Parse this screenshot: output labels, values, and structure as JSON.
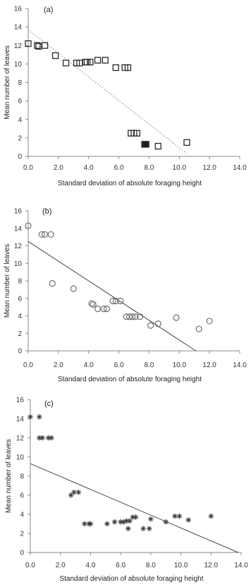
{
  "chart_data": [
    {
      "type": "scatter",
      "panel_label": "(a)",
      "marker": "square",
      "xlabel": "Standard deviation of absolute foraging height",
      "ylabel": "Mean number of leaves",
      "xlim": [
        0,
        14
      ],
      "ylim": [
        0,
        16
      ],
      "xticks": [
        "0.0",
        "2.0",
        "4.0",
        "6.0",
        "8.0",
        "10.0",
        "12.0",
        "14.0"
      ],
      "yticks": [
        "0",
        "2",
        "4",
        "6",
        "8",
        "10",
        "12",
        "14",
        "16"
      ],
      "grid": false,
      "trend_line_style": "dotted",
      "trend_line": {
        "x": [
          0,
          10.5
        ],
        "y": [
          13.7,
          0.3
        ]
      },
      "points": {
        "x": [
          0.0,
          0.6,
          0.7,
          1.1,
          1.8,
          2.5,
          3.2,
          3.4,
          3.8,
          3.9,
          4.1,
          4.6,
          5.1,
          5.8,
          6.4,
          6.6,
          6.8,
          7.0,
          7.2,
          7.7,
          7.8,
          8.6,
          10.5
        ],
        "y": [
          12.2,
          12.0,
          11.9,
          12.0,
          10.9,
          10.1,
          10.1,
          10.1,
          10.2,
          10.2,
          10.2,
          10.4,
          10.4,
          9.6,
          9.6,
          9.6,
          2.5,
          2.5,
          2.5,
          1.3,
          1.3,
          1.1,
          1.5
        ]
      }
    },
    {
      "type": "scatter",
      "panel_label": "(b)",
      "marker": "circle",
      "xlabel": "Standard deviation of absolute foraging height",
      "ylabel": "Mean number of leaves",
      "xlim": [
        0,
        14
      ],
      "ylim": [
        0,
        16
      ],
      "xticks": [
        "0.0",
        "2.0",
        "4.0",
        "6.0",
        "8.0",
        "10.0",
        "12.0",
        "14.0"
      ],
      "yticks": [
        "0",
        "2",
        "4",
        "6",
        "8",
        "10",
        "12",
        "14",
        "16"
      ],
      "grid": false,
      "trend_line_style": "solid",
      "trend_line": {
        "x": [
          0,
          11.1
        ],
        "y": [
          12.5,
          0
        ]
      },
      "points": {
        "x": [
          0.0,
          0.9,
          1.1,
          1.5,
          1.6,
          3.0,
          4.2,
          4.3,
          4.6,
          5.0,
          5.2,
          5.6,
          5.8,
          6.1,
          6.5,
          6.7,
          6.9,
          7.1,
          7.4,
          8.1,
          8.6,
          9.8,
          11.3,
          12.0
        ],
        "y": [
          14.3,
          13.3,
          13.3,
          13.3,
          7.7,
          7.1,
          5.4,
          5.3,
          4.8,
          4.8,
          4.8,
          5.7,
          5.7,
          5.7,
          3.9,
          3.9,
          3.9,
          3.9,
          3.9,
          2.9,
          3.1,
          3.8,
          2.5,
          3.4
        ]
      }
    },
    {
      "type": "scatter",
      "panel_label": "(c)",
      "marker": "asterisk",
      "xlabel": "Standard deviation of absolute foraging height",
      "ylabel": "Mean number of leaves",
      "xlim": [
        0,
        14
      ],
      "ylim": [
        0,
        16
      ],
      "xticks": [
        "0.0",
        "2.0",
        "4.0",
        "6.0",
        "8.0",
        "10.0",
        "12.0",
        "14.0"
      ],
      "yticks": [
        "0",
        "2",
        "4",
        "6",
        "8",
        "10",
        "12",
        "14",
        "16"
      ],
      "grid": false,
      "trend_line_style": "solid",
      "trend_line": {
        "x": [
          0,
          13.8
        ],
        "y": [
          9.3,
          0
        ]
      },
      "points": {
        "x": [
          0.0,
          0.6,
          0.6,
          0.8,
          1.2,
          1.4,
          2.7,
          2.9,
          3.2,
          3.6,
          3.9,
          4.0,
          5.1,
          5.6,
          6.0,
          6.2,
          6.4,
          6.5,
          6.6,
          6.8,
          7.0,
          7.5,
          7.9,
          8.0,
          9.0,
          9.6,
          9.9,
          10.5,
          12.0
        ],
        "y": [
          14.2,
          14.2,
          12.0,
          12.0,
          12.0,
          12.0,
          6.0,
          6.3,
          6.3,
          3.0,
          3.0,
          3.0,
          3.0,
          3.2,
          3.2,
          3.2,
          3.3,
          2.5,
          3.3,
          3.7,
          3.7,
          2.5,
          2.5,
          3.5,
          3.2,
          3.8,
          3.8,
          3.4,
          3.8
        ]
      }
    }
  ]
}
